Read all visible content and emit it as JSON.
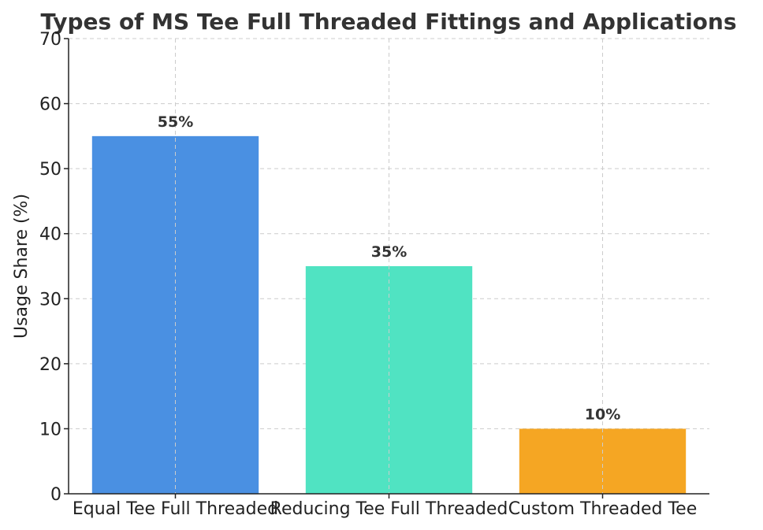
{
  "chart_data": {
    "type": "bar",
    "title": "Types of MS Tee Full Threaded Fittings and Applications",
    "xlabel": "",
    "ylabel": "Usage Share (%)",
    "categories": [
      "Equal Tee Full Threaded",
      "Reducing Tee Full Threaded",
      "Custom Threaded Tee"
    ],
    "values": [
      55,
      35,
      10
    ],
    "value_labels": [
      "55%",
      "35%",
      "10%"
    ],
    "colors": [
      "#4a90e2",
      "#50e3c2",
      "#f5a623"
    ],
    "ylim": [
      0,
      70
    ],
    "yticks": [
      0,
      10,
      20,
      30,
      40,
      50,
      60,
      70
    ],
    "grid": true,
    "legend": "none"
  }
}
